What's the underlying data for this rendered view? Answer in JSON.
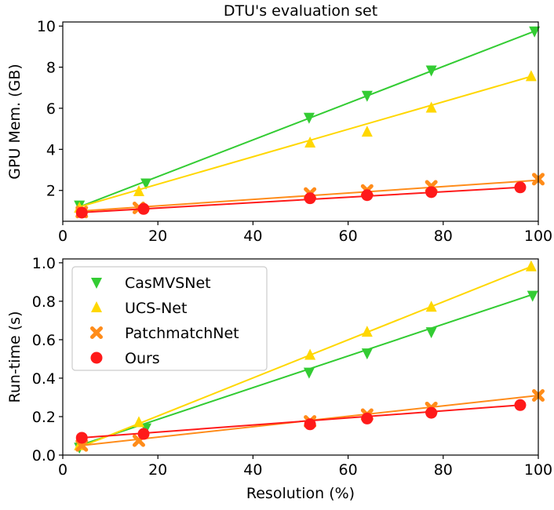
{
  "chart_data": [
    {
      "type": "line",
      "title": "DTU's evaluation set",
      "xlabel": "",
      "ylabel": "GPU Mem. (GB)",
      "xlim": [
        0,
        100
      ],
      "ylim": [
        0.5,
        10.2
      ],
      "xticks": [
        0,
        20,
        40,
        60,
        80,
        100
      ],
      "yticks": [
        2,
        4,
        6,
        8,
        10
      ],
      "legend": null,
      "series": [
        {
          "name": "CasMVSNet",
          "color": "#33cc33",
          "marker": "triangle-down",
          "x": [
            3.5,
            17.5,
            51.8,
            64,
            77.5,
            99.2
          ],
          "y": [
            1.28,
            2.35,
            5.55,
            6.62,
            7.85,
            9.75
          ],
          "fit": [
            [
              3.5,
              1.2
            ],
            [
              99.2,
              9.75
            ]
          ]
        },
        {
          "name": "UCS-Net",
          "color": "#ffd700",
          "marker": "triangle-up",
          "x": [
            3.5,
            16,
            52,
            64,
            77.5,
            98.5
          ],
          "y": [
            1.15,
            1.95,
            4.32,
            4.85,
            6.02,
            7.55
          ],
          "fit": [
            [
              3.5,
              1.2
            ],
            [
              98.5,
              7.55
            ]
          ]
        },
        {
          "name": "PatchmatchNet",
          "color": "#ff8c1a",
          "marker": "x",
          "x": [
            4,
            16,
            52,
            64,
            77.5,
            100
          ],
          "y": [
            0.95,
            1.15,
            1.85,
            2.0,
            2.2,
            2.55
          ],
          "fit": [
            [
              4,
              1.0
            ],
            [
              100,
              2.5
            ]
          ]
        },
        {
          "name": "Ours",
          "color": "#ff1a1a",
          "marker": "circle",
          "x": [
            4,
            17,
            52,
            64,
            77.5,
            96.2
          ],
          "y": [
            0.92,
            1.1,
            1.62,
            1.77,
            1.92,
            2.15
          ],
          "fit": [
            [
              4,
              0.93
            ],
            [
              96.2,
              2.15
            ]
          ]
        }
      ]
    },
    {
      "type": "line",
      "title": "",
      "xlabel": "Resolution (%)",
      "ylabel": "Run-time (s)",
      "xlim": [
        0,
        100
      ],
      "ylim": [
        0.0,
        1.02
      ],
      "xticks": [
        0,
        20,
        40,
        60,
        80,
        100
      ],
      "yticks": [
        0.0,
        0.2,
        0.4,
        0.6,
        0.8,
        1.0
      ],
      "legend": "top-left",
      "series": [
        {
          "name": "CasMVSNet",
          "color": "#33cc33",
          "marker": "triangle-down",
          "x": [
            3.5,
            17.5,
            51.8,
            64,
            77.5,
            98.8
          ],
          "y": [
            0.04,
            0.14,
            0.43,
            0.53,
            0.64,
            0.83
          ],
          "fit": [
            [
              3.5,
              0.05
            ],
            [
              98.8,
              0.835
            ]
          ]
        },
        {
          "name": "UCS-Net",
          "color": "#ffd700",
          "marker": "triangle-up",
          "x": [
            3.5,
            16,
            52,
            64,
            77.5,
            98.5
          ],
          "y": [
            0.05,
            0.17,
            0.52,
            0.64,
            0.77,
            0.98
          ],
          "fit": [
            [
              3.5,
              0.04
            ],
            [
              98.5,
              0.98
            ]
          ]
        },
        {
          "name": "PatchmatchNet",
          "color": "#ff8c1a",
          "marker": "x",
          "x": [
            4,
            16,
            52,
            64,
            77.5,
            100
          ],
          "y": [
            0.05,
            0.075,
            0.175,
            0.21,
            0.245,
            0.31
          ],
          "fit": [
            [
              4,
              0.05
            ],
            [
              100,
              0.31
            ]
          ]
        },
        {
          "name": "Ours",
          "color": "#ff1a1a",
          "marker": "circle",
          "x": [
            4,
            17,
            52,
            64,
            77.5,
            96.2
          ],
          "y": [
            0.09,
            0.11,
            0.16,
            0.19,
            0.22,
            0.26
          ],
          "fit": [
            [
              4,
              0.09
            ],
            [
              96.2,
              0.26
            ]
          ]
        }
      ]
    }
  ]
}
